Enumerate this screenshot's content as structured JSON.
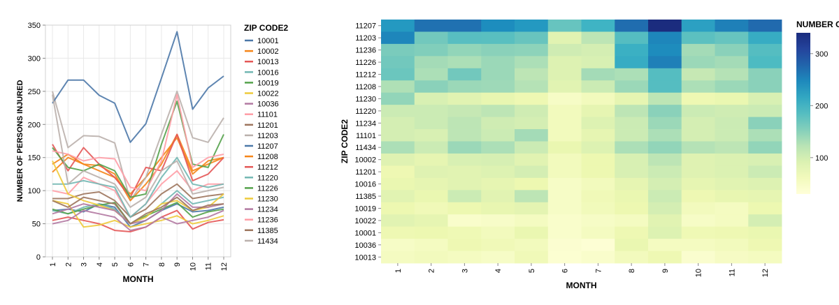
{
  "chart_data": [
    {
      "type": "line",
      "xlabel": "MONTH",
      "ylabel": "NUMBER OF PERSONS INJURED",
      "ylim": [
        0,
        350
      ],
      "yticks": [
        0,
        50,
        100,
        150,
        200,
        250,
        300,
        350
      ],
      "x": [
        1,
        2,
        3,
        4,
        5,
        6,
        7,
        8,
        9,
        10,
        11,
        12
      ],
      "grid": true,
      "legend_title": "ZIP CODE2",
      "legend_position": "right",
      "series": [
        {
          "name": "10001",
          "color": "#4c78a8",
          "values": [
            70,
            72,
            68,
            80,
            75,
            45,
            55,
            70,
            80,
            68,
            70,
            75
          ]
        },
        {
          "name": "10002",
          "color": "#f58518",
          "values": [
            140,
            155,
            140,
            130,
            120,
            95,
            120,
            150,
            180,
            125,
            145,
            150
          ]
        },
        {
          "name": "10013",
          "color": "#e45756",
          "values": [
            55,
            60,
            55,
            50,
            40,
            38,
            45,
            60,
            70,
            42,
            52,
            56
          ]
        },
        {
          "name": "10016",
          "color": "#72b7b2",
          "values": [
            70,
            65,
            75,
            80,
            72,
            50,
            60,
            80,
            100,
            80,
            85,
            90
          ]
        },
        {
          "name": "10019",
          "color": "#54a24b",
          "values": [
            72,
            65,
            72,
            78,
            82,
            50,
            62,
            72,
            82,
            60,
            68,
            72
          ]
        },
        {
          "name": "10022",
          "color": "#eeca3b",
          "values": [
            85,
            80,
            45,
            48,
            55,
            45,
            50,
            55,
            62,
            50,
            55,
            62
          ]
        },
        {
          "name": "10036",
          "color": "#b279a2",
          "values": [
            50,
            55,
            70,
            65,
            60,
            40,
            45,
            60,
            50,
            55,
            60,
            70
          ]
        },
        {
          "name": "11101",
          "color": "#ff9da6",
          "values": [
            100,
            95,
            120,
            110,
            100,
            60,
            80,
            110,
            130,
            100,
            110,
            110
          ]
        },
        {
          "name": "11201",
          "color": "#9d755d",
          "values": [
            88,
            88,
            95,
            98,
            85,
            60,
            72,
            95,
            110,
            88,
            92,
            95
          ]
        },
        {
          "name": "11203",
          "color": "#bab0ac",
          "values": [
            250,
            165,
            183,
            182,
            172,
            85,
            120,
            185,
            250,
            180,
            173,
            210
          ]
        },
        {
          "name": "11207",
          "color": "#4c78a8",
          "values": [
            232,
            267,
            267,
            244,
            232,
            173,
            201,
            270,
            340,
            223,
            255,
            273
          ]
        },
        {
          "name": "11208",
          "color": "#f58518",
          "values": [
            128,
            150,
            140,
            138,
            125,
            85,
            110,
            140,
            185,
            130,
            140,
            150
          ]
        },
        {
          "name": "11212",
          "color": "#e45756",
          "values": [
            170,
            130,
            165,
            140,
            120,
            90,
            135,
            130,
            185,
            115,
            125,
            150
          ]
        },
        {
          "name": "11220",
          "color": "#72b7b2",
          "values": [
            110,
            110,
            115,
            110,
            105,
            60,
            80,
            120,
            150,
            110,
            105,
            110
          ]
        },
        {
          "name": "11226",
          "color": "#54a24b",
          "values": [
            165,
            135,
            130,
            140,
            130,
            90,
            95,
            170,
            235,
            140,
            135,
            185
          ]
        },
        {
          "name": "11230",
          "color": "#eeca3b",
          "values": [
            145,
            95,
            85,
            78,
            70,
            50,
            60,
            80,
            85,
            70,
            75,
            95
          ]
        },
        {
          "name": "11234",
          "color": "#b279a2",
          "values": [
            65,
            72,
            80,
            75,
            70,
            50,
            55,
            70,
            95,
            75,
            75,
            80
          ]
        },
        {
          "name": "11236",
          "color": "#ff9da6",
          "values": [
            160,
            155,
            145,
            150,
            148,
            105,
            100,
            145,
            245,
            135,
            150,
            155
          ]
        },
        {
          "name": "11385",
          "color": "#9d755d",
          "values": [
            85,
            75,
            90,
            85,
            80,
            50,
            65,
            75,
            90,
            70,
            78,
            80
          ]
        },
        {
          "name": "11434",
          "color": "#bab0ac",
          "values": [
            245,
            110,
            130,
            120,
            110,
            75,
            90,
            130,
            145,
            95,
            100,
            105
          ]
        }
      ]
    },
    {
      "type": "heatmap",
      "xlabel": "MONTH",
      "ylabel": "ZIP CODE2",
      "x": [
        1,
        2,
        3,
        4,
        5,
        6,
        7,
        8,
        9,
        10,
        11,
        12
      ],
      "y": [
        "11207",
        "11203",
        "11236",
        "11226",
        "11212",
        "11208",
        "11230",
        "11220",
        "11234",
        "11101",
        "11434",
        "10002",
        "11201",
        "10016",
        "11385",
        "10019",
        "10022",
        "10001",
        "10036",
        "10013"
      ],
      "values": [
        [
          232,
          267,
          267,
          244,
          232,
          173,
          201,
          270,
          340,
          223,
          255,
          273
        ],
        [
          250,
          165,
          183,
          182,
          172,
          85,
          120,
          185,
          250,
          180,
          173,
          210
        ],
        [
          160,
          155,
          145,
          150,
          148,
          105,
          100,
          205,
          245,
          135,
          150,
          185
        ],
        [
          165,
          135,
          130,
          140,
          130,
          90,
          95,
          210,
          255,
          140,
          135,
          190
        ],
        [
          170,
          130,
          165,
          140,
          120,
          90,
          135,
          130,
          185,
          115,
          125,
          150
        ],
        [
          128,
          150,
          140,
          138,
          125,
          85,
          110,
          140,
          185,
          130,
          140,
          150
        ],
        [
          145,
          95,
          85,
          78,
          70,
          50,
          60,
          80,
          120,
          70,
          75,
          95
        ],
        [
          110,
          110,
          115,
          120,
          105,
          60,
          80,
          120,
          150,
          110,
          105,
          110
        ],
        [
          100,
          110,
          120,
          105,
          100,
          60,
          90,
          110,
          140,
          100,
          110,
          150
        ],
        [
          100,
          95,
          120,
          110,
          135,
          60,
          80,
          110,
          130,
          100,
          110,
          130
        ],
        [
          130,
          110,
          140,
          130,
          110,
          75,
          90,
          130,
          145,
          125,
          120,
          145
        ],
        [
          88,
          80,
          95,
          98,
          85,
          60,
          72,
          95,
          120,
          88,
          92,
          95
        ],
        [
          70,
          88,
          85,
          90,
          100,
          60,
          72,
          95,
          110,
          88,
          92,
          110
        ],
        [
          75,
          80,
          85,
          80,
          72,
          50,
          60,
          80,
          100,
          80,
          85,
          90
        ],
        [
          85,
          75,
          110,
          85,
          120,
          50,
          65,
          75,
          110,
          70,
          78,
          80
        ],
        [
          72,
          65,
          72,
          78,
          82,
          50,
          62,
          72,
          100,
          60,
          55,
          72
        ],
        [
          85,
          80,
          45,
          48,
          55,
          45,
          50,
          55,
          85,
          50,
          55,
          100
        ],
        [
          70,
          72,
          68,
          60,
          75,
          45,
          55,
          70,
          90,
          68,
          70,
          75
        ],
        [
          50,
          55,
          70,
          65,
          60,
          40,
          35,
          75,
          55,
          55,
          60,
          70
        ],
        [
          55,
          60,
          55,
          50,
          65,
          38,
          45,
          60,
          70,
          42,
          52,
          56
        ]
      ],
      "colorbar_title": "NUMBER O",
      "colorbar_ticks": [
        100,
        200,
        300
      ],
      "color_range": [
        30,
        340
      ],
      "legend_position": "right"
    }
  ]
}
